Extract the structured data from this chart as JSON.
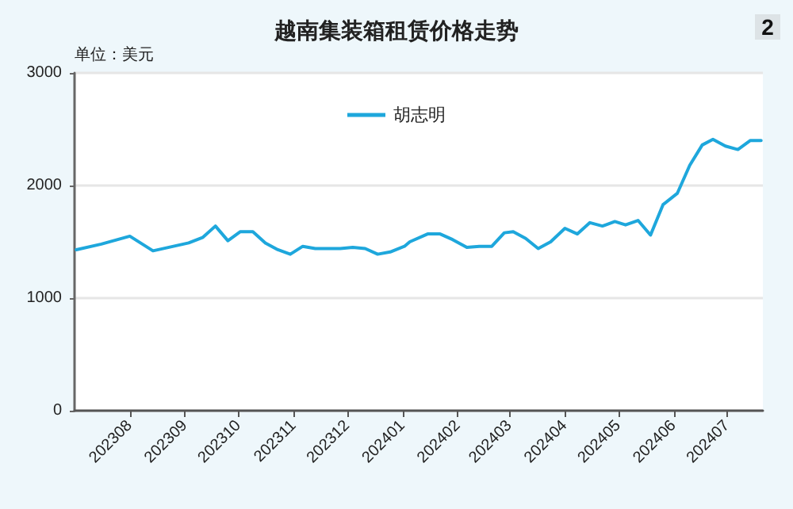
{
  "chart_data": {
    "type": "line",
    "title": "越南集装箱租赁价格走势",
    "ylabel": "单位：美元",
    "annotations": [
      "2"
    ],
    "x": [
      "2023-07-02",
      "2023-07-16",
      "2023-08-01",
      "2023-08-14",
      "2023-09-03",
      "2023-09-11",
      "2023-09-18",
      "2023-09-25",
      "2023-10-02",
      "2023-10-09",
      "2023-10-16",
      "2023-10-23",
      "2023-10-30",
      "2023-11-06",
      "2023-11-13",
      "2023-11-27",
      "2023-12-04",
      "2023-12-11",
      "2023-12-18",
      "2023-12-25",
      "2024-01-02",
      "2024-01-05",
      "2024-01-15",
      "2024-01-22",
      "2024-01-29",
      "2024-02-06",
      "2024-02-13",
      "2024-02-20",
      "2024-02-27",
      "2024-03-03",
      "2024-03-10",
      "2024-03-17",
      "2024-03-24",
      "2024-04-01",
      "2024-04-08",
      "2024-04-15",
      "2024-04-22",
      "2024-04-29",
      "2024-05-05",
      "2024-05-12",
      "2024-05-19",
      "2024-05-26",
      "2024-06-03",
      "2024-06-10",
      "2024-06-17",
      "2024-06-23",
      "2024-06-30",
      "2024-07-07",
      "2024-07-14",
      "2024-07-20"
    ],
    "series": [
      {
        "name": "胡志明",
        "color": "#1ea7dc",
        "values": [
          1430,
          1480,
          1550,
          1420,
          1490,
          1540,
          1640,
          1510,
          1590,
          1590,
          1490,
          1430,
          1390,
          1460,
          1440,
          1440,
          1450,
          1440,
          1390,
          1410,
          1460,
          1500,
          1570,
          1570,
          1520,
          1450,
          1460,
          1460,
          1580,
          1590,
          1530,
          1440,
          1500,
          1620,
          1570,
          1670,
          1640,
          1680,
          1650,
          1690,
          1560,
          1830,
          1930,
          2180,
          2360,
          2410,
          2350,
          2320,
          2400,
          2400
        ]
      }
    ],
    "xlim": [
      "2023-07-01",
      "2024-07-21"
    ],
    "xticks": [
      {
        "value": "2023-08",
        "label": "202308"
      },
      {
        "value": "2023-09",
        "label": "202309"
      },
      {
        "value": "2023-10",
        "label": "202310"
      },
      {
        "value": "2023-11",
        "label": "202311"
      },
      {
        "value": "2023-12",
        "label": "202312"
      },
      {
        "value": "2024-01",
        "label": "202401"
      },
      {
        "value": "2024-02",
        "label": "202402"
      },
      {
        "value": "2024-03",
        "label": "202403"
      },
      {
        "value": "2024-04",
        "label": "202404"
      },
      {
        "value": "2024-05",
        "label": "202405"
      },
      {
        "value": "2024-06",
        "label": "202406"
      },
      {
        "value": "2024-07",
        "label": "202407"
      }
    ],
    "ylim": [
      0,
      3000
    ],
    "yticks": [
      0,
      1000,
      2000,
      3000
    ],
    "grid": "y",
    "legend": "top",
    "marker": "none",
    "line_style": "solid"
  }
}
